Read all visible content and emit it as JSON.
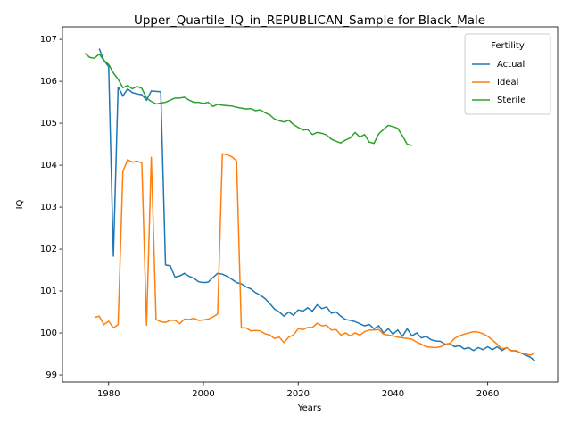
{
  "chart_data": {
    "type": "line",
    "title": "Upper_Quartile_IQ_in_REPUBLICAN_Sample for Black_Male",
    "x_label": "Years",
    "y_label": "IQ",
    "legend_title": "Fertility",
    "legend_loc": "upper right",
    "x": [
      1975,
      1976,
      1977,
      1978,
      1979,
      1980,
      1981,
      1982,
      1983,
      1984,
      1985,
      1986,
      1987,
      1988,
      1989,
      1990,
      1991,
      1992,
      1993,
      1994,
      1995,
      1996,
      1997,
      1998,
      1999,
      2000,
      2001,
      2002,
      2003,
      2004,
      2005,
      2006,
      2007,
      2008,
      2009,
      2010,
      2011,
      2012,
      2013,
      2014,
      2015,
      2016,
      2017,
      2018,
      2019,
      2020,
      2021,
      2022,
      2023,
      2024,
      2025,
      2026,
      2027,
      2028,
      2029,
      2030,
      2031,
      2032,
      2033,
      2034,
      2035,
      2036,
      2037,
      2038,
      2039,
      2040,
      2041,
      2042,
      2043,
      2044,
      2045,
      2046,
      2047,
      2048,
      2049,
      2050,
      2051,
      2052,
      2053,
      2054,
      2055,
      2056,
      2057,
      2058,
      2059,
      2060,
      2061,
      2062,
      2063,
      2064,
      2065,
      2066,
      2067,
      2068,
      2069,
      2070
    ],
    "series": [
      {
        "name": "Actual",
        "color": "#1f77b4",
        "values": [
          null,
          null,
          null,
          106.78,
          106.5,
          106.35,
          101.82,
          105.87,
          105.65,
          105.82,
          105.73,
          105.7,
          105.68,
          105.55,
          105.77,
          105.76,
          105.75,
          101.62,
          101.6,
          101.33,
          101.36,
          101.42,
          101.35,
          101.3,
          101.22,
          101.2,
          101.21,
          101.32,
          101.42,
          101.4,
          101.35,
          101.28,
          101.2,
          101.17,
          101.1,
          101.05,
          100.96,
          100.9,
          100.82,
          100.7,
          100.57,
          100.5,
          100.4,
          100.5,
          100.42,
          100.55,
          100.52,
          100.6,
          100.52,
          100.67,
          100.58,
          100.62,
          100.47,
          100.5,
          100.4,
          100.32,
          100.3,
          100.27,
          100.22,
          100.17,
          100.2,
          100.1,
          100.17,
          100.0,
          100.1,
          99.97,
          100.07,
          99.92,
          100.1,
          99.93,
          100.0,
          99.88,
          99.92,
          99.84,
          99.81,
          99.8,
          99.73,
          99.75,
          99.67,
          99.7,
          99.62,
          99.65,
          99.58,
          99.65,
          99.6,
          99.67,
          99.6,
          99.67,
          99.58,
          99.65,
          99.58,
          99.57,
          99.52,
          99.47,
          99.42,
          99.33
        ]
      },
      {
        "name": "Ideal",
        "color": "#ff7f0e",
        "values": [
          null,
          null,
          100.37,
          100.4,
          100.2,
          100.28,
          100.12,
          100.2,
          103.85,
          104.13,
          104.07,
          104.1,
          104.05,
          100.17,
          104.2,
          100.32,
          100.27,
          100.25,
          100.3,
          100.3,
          100.22,
          100.33,
          100.32,
          100.35,
          100.3,
          100.31,
          100.33,
          100.38,
          100.45,
          104.27,
          104.25,
          104.2,
          104.1,
          100.12,
          100.12,
          100.05,
          100.06,
          100.05,
          99.98,
          99.95,
          99.87,
          99.9,
          99.77,
          99.9,
          99.95,
          100.1,
          100.08,
          100.13,
          100.13,
          100.23,
          100.17,
          100.18,
          100.07,
          100.08,
          99.95,
          100.0,
          99.93,
          100.0,
          99.95,
          100.03,
          100.07,
          100.07,
          100.08,
          99.97,
          99.95,
          99.93,
          99.9,
          99.88,
          99.87,
          99.85,
          99.78,
          99.73,
          99.67,
          99.66,
          99.65,
          99.67,
          99.72,
          99.75,
          99.87,
          99.93,
          99.97,
          100.0,
          100.03,
          100.02,
          99.98,
          99.92,
          99.83,
          99.73,
          99.62,
          99.65,
          99.57,
          99.58,
          99.52,
          99.5,
          99.47,
          99.53
        ]
      },
      {
        "name": "Sterile",
        "color": "#2ca02c",
        "values": [
          106.67,
          106.57,
          106.55,
          106.65,
          106.5,
          106.4,
          106.2,
          106.05,
          105.85,
          105.9,
          105.82,
          105.88,
          105.83,
          105.6,
          105.52,
          105.46,
          105.48,
          105.5,
          105.55,
          105.6,
          105.6,
          105.62,
          105.55,
          105.5,
          105.5,
          105.47,
          105.5,
          105.4,
          105.45,
          105.43,
          105.42,
          105.41,
          105.38,
          105.36,
          105.34,
          105.35,
          105.3,
          105.32,
          105.25,
          105.2,
          105.1,
          105.06,
          105.03,
          105.07,
          104.97,
          104.9,
          104.84,
          104.85,
          104.73,
          104.78,
          104.76,
          104.72,
          104.62,
          104.57,
          104.53,
          104.6,
          104.65,
          104.78,
          104.67,
          104.73,
          104.55,
          104.52,
          104.75,
          104.85,
          104.95,
          104.92,
          104.88,
          104.7,
          104.5,
          104.47,
          null,
          null,
          null,
          null,
          null,
          null,
          null,
          null,
          null,
          null,
          null,
          null,
          null,
          null,
          null,
          null,
          null,
          null,
          null,
          null,
          null,
          null,
          null,
          null,
          null,
          null
        ]
      }
    ],
    "xlim": [
      1970.25,
      2074.75
    ],
    "xticks": [
      1980,
      2000,
      2020,
      2040,
      2060
    ],
    "ylim": [
      98.83,
      107.3
    ],
    "yticks": [
      99,
      100,
      101,
      102,
      103,
      104,
      105,
      106,
      107
    ]
  }
}
